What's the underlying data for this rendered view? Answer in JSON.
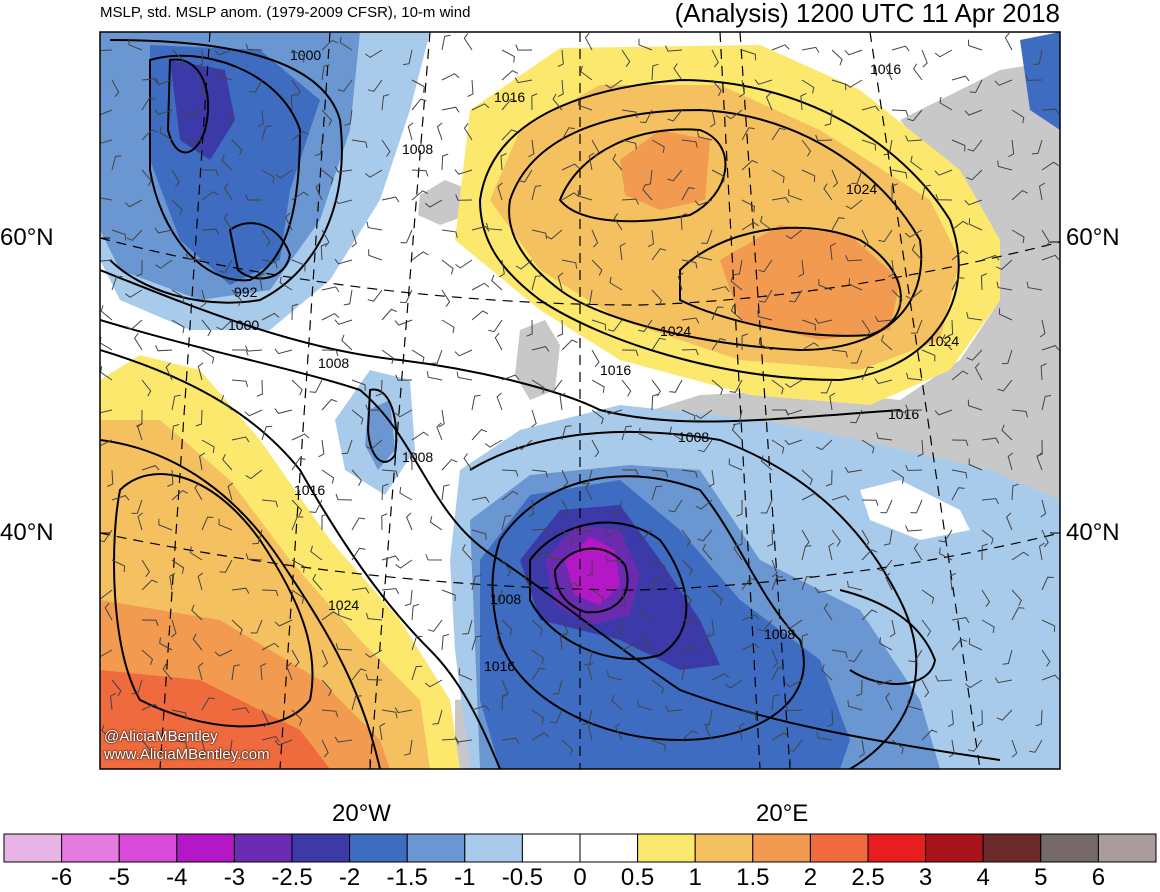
{
  "header": {
    "left_title": "MSLP, std. MSLP anom. (1979-2009 CFSR), 10-m wind",
    "right_title": "(Analysis) 1200 UTC 11 Apr 2018"
  },
  "axes": {
    "lat_left": [
      "60°N",
      "40°N"
    ],
    "lat_right": [
      "60°N",
      "40°N"
    ],
    "lon_bottom": [
      "20°W",
      "20°E"
    ]
  },
  "credit": {
    "twitter": "@AliciaMBentley",
    "website": "www.AliciaMBentley.com"
  },
  "isobar_labels": [
    {
      "text": "1000"
    },
    {
      "text": "1016"
    },
    {
      "text": "1008"
    },
    {
      "text": "992"
    },
    {
      "text": "1000"
    },
    {
      "text": "1008"
    },
    {
      "text": "1008"
    },
    {
      "text": "1016"
    },
    {
      "text": "1024"
    },
    {
      "text": "1016"
    },
    {
      "text": "1024"
    },
    {
      "text": "1024"
    },
    {
      "text": "1016"
    },
    {
      "text": "1024"
    },
    {
      "text": "1016"
    },
    {
      "text": "1008"
    },
    {
      "text": "1008"
    },
    {
      "text": "1008"
    },
    {
      "text": "1016"
    }
  ],
  "colorbar": {
    "colors": [
      "#e8b3e6",
      "#e37ae0",
      "#d94bd9",
      "#b417c6",
      "#6a2bb1",
      "#3b3aa8",
      "#3d6cc0",
      "#6a96d2",
      "#a9cbeb",
      "#ffffff",
      "#ffffff",
      "#fbe86d",
      "#f5c060",
      "#f29b50",
      "#ef6a3c",
      "#e81e1e",
      "#a8141a",
      "#6d2b2b",
      "#766a69",
      "#a89c9b"
    ],
    "labels": [
      "-6",
      "-5",
      "-4",
      "-3",
      "-2.5",
      "-2",
      "-1.5",
      "-1",
      "-0.5",
      "0",
      "0.5",
      "1",
      "1.5",
      "2",
      "2.5",
      "3",
      "4",
      "5",
      "6"
    ]
  }
}
